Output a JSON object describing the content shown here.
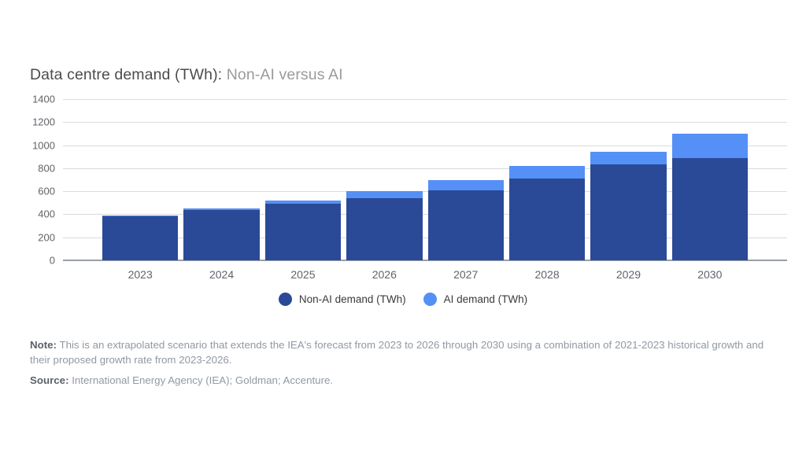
{
  "title": {
    "main": "Data centre demand (TWh):",
    "sub": "Non-AI versus AI"
  },
  "legend": [
    {
      "label": "Non-AI demand (TWh)",
      "color": "#2a4a98"
    },
    {
      "label": "AI demand (TWh)",
      "color": "#5590f6"
    }
  ],
  "note": {
    "label": "Note:",
    "text": "This is an extrapolated scenario that extends the IEA's forecast from 2023 to 2026 through 2030 using a combination of 2021-2023 historical growth and their proposed growth rate from 2023-2026."
  },
  "source": {
    "label": "Source:",
    "text": "International Energy Agency (IEA); Goldman; Accenture."
  },
  "chart_data": {
    "type": "bar",
    "stacked": true,
    "title": "Data centre demand (TWh): Non-AI versus AI",
    "categories": [
      "2023",
      "2024",
      "2025",
      "2026",
      "2027",
      "2028",
      "2029",
      "2030"
    ],
    "series": [
      {
        "name": "Non-AI demand (TWh)",
        "color": "#2a4a98",
        "values": [
          380,
          440,
          490,
          540,
          610,
          710,
          830,
          890
        ]
      },
      {
        "name": "AI demand (TWh)",
        "color": "#5590f6",
        "values": [
          10,
          10,
          30,
          60,
          90,
          110,
          110,
          210
        ]
      }
    ],
    "totals": [
      390,
      450,
      520,
      600,
      700,
      820,
      940,
      1100
    ],
    "xlabel": "",
    "ylabel": "",
    "ylim": [
      0,
      1400
    ],
    "ytick_step": 200,
    "grid": true,
    "legend_position": "bottom"
  }
}
